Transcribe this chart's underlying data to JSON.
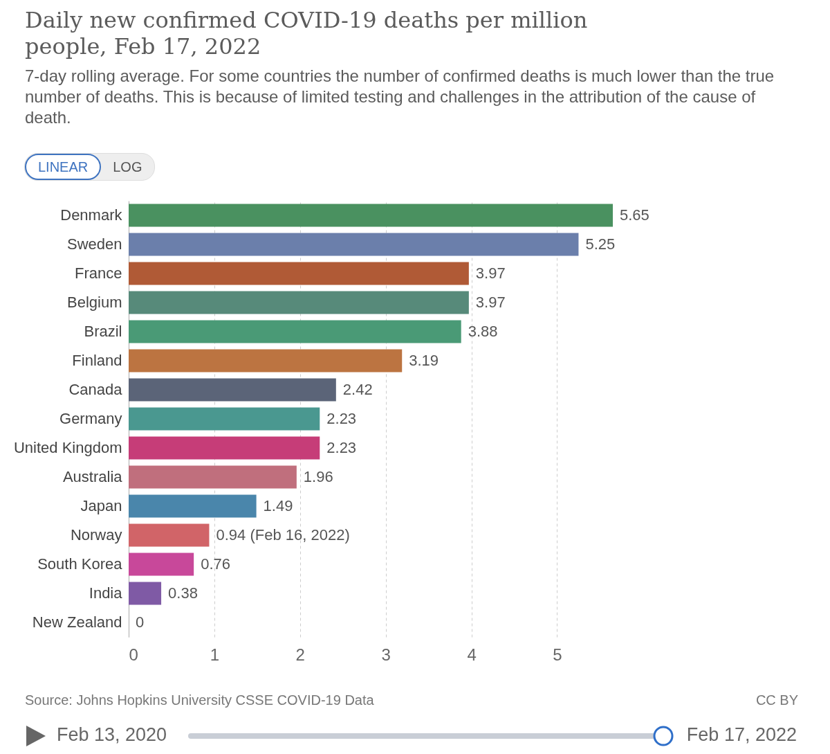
{
  "chart_data": {
    "type": "bar",
    "orientation": "horizontal",
    "title": "Daily new confirmed COVID-19 deaths per million people, Feb 17, 2022",
    "subtitle": "7-day rolling average. For some countries the number of confirmed deaths is much lower than the true number of deaths. This is because of limited testing and challenges in the attribution of the cause of death.",
    "categories": [
      "Denmark",
      "Sweden",
      "France",
      "Belgium",
      "Brazil",
      "Finland",
      "Canada",
      "Germany",
      "United Kingdom",
      "Australia",
      "Japan",
      "Norway",
      "South Korea",
      "India",
      "New Zealand"
    ],
    "values": [
      5.65,
      5.25,
      3.97,
      3.97,
      3.88,
      3.19,
      2.42,
      2.23,
      2.23,
      1.96,
      1.49,
      0.94,
      0.76,
      0.38,
      0
    ],
    "value_labels": [
      "5.65",
      "5.25",
      "3.97",
      "3.97",
      "3.88",
      "3.19",
      "2.42",
      "2.23",
      "2.23",
      "1.96",
      "1.49",
      "0.94 (Feb 16, 2022)",
      "0.76",
      "0.38",
      "0"
    ],
    "colors": [
      "#4a9160",
      "#6b7fab",
      "#b05a36",
      "#578a7a",
      "#4a9a76",
      "#bc7441",
      "#5b6478",
      "#4a9890",
      "#c63d78",
      "#c06f7d",
      "#4a86ab",
      "#d16468",
      "#c8489a",
      "#7f5aa5",
      "#5a6fa8"
    ],
    "xlim": [
      0,
      5.65
    ],
    "xticks": [
      0,
      1,
      2,
      3,
      4,
      5
    ],
    "grid": "x",
    "annotations": [
      "Source: Johns Hopkins University CSSE COVID-19 Data",
      "CC BY",
      "LINEAR",
      "LOG",
      "Feb 13, 2020",
      "Feb 17, 2022"
    ]
  }
}
